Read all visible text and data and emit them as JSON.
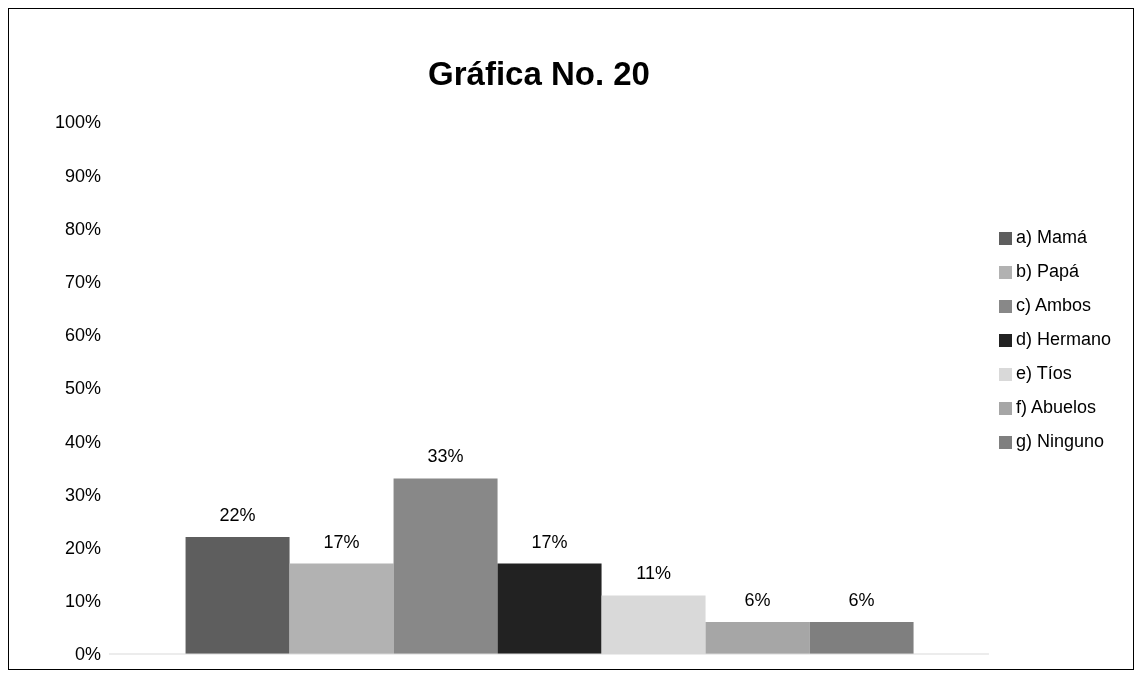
{
  "chart_data": {
    "type": "bar",
    "title": "Gráfica No. 20",
    "categories": [
      null
    ],
    "series": [
      {
        "name": "a) Mamá",
        "color": "#5e5e5e",
        "values": [
          22
        ],
        "value_labels": [
          "22%"
        ]
      },
      {
        "name": "b) Papá",
        "color": "#b2b2b2",
        "values": [
          17
        ],
        "value_labels": [
          "17%"
        ]
      },
      {
        "name": "c) Ambos",
        "color": "#888888",
        "values": [
          33
        ],
        "value_labels": [
          "33%"
        ]
      },
      {
        "name": "d) Hermano",
        "color": "#222222",
        "values": [
          17
        ],
        "value_labels": [
          "17%"
        ]
      },
      {
        "name": "e) Tíos",
        "color": "#d9d9d9",
        "values": [
          11
        ],
        "value_labels": [
          "11%"
        ]
      },
      {
        "name": "f) Abuelos",
        "color": "#a6a6a6",
        "values": [
          6
        ],
        "value_labels": [
          "6%"
        ]
      },
      {
        "name": "g) Ninguno",
        "color": "#7f7f7f",
        "values": [
          6
        ],
        "value_labels": [
          "6%"
        ]
      }
    ],
    "ylim": [
      0,
      100
    ],
    "yticks": [
      {
        "value": 0,
        "label": "0%"
      },
      {
        "value": 10,
        "label": "10%"
      },
      {
        "value": 20,
        "label": "20%"
      },
      {
        "value": 30,
        "label": "30%"
      },
      {
        "value": 40,
        "label": "40%"
      },
      {
        "value": 50,
        "label": "50%"
      },
      {
        "value": 60,
        "label": "60%"
      },
      {
        "value": 70,
        "label": "70%"
      },
      {
        "value": 80,
        "label": "80%"
      },
      {
        "value": 90,
        "label": "90%"
      },
      {
        "value": 100,
        "label": "100%"
      }
    ],
    "grid": false,
    "legend": "right"
  }
}
